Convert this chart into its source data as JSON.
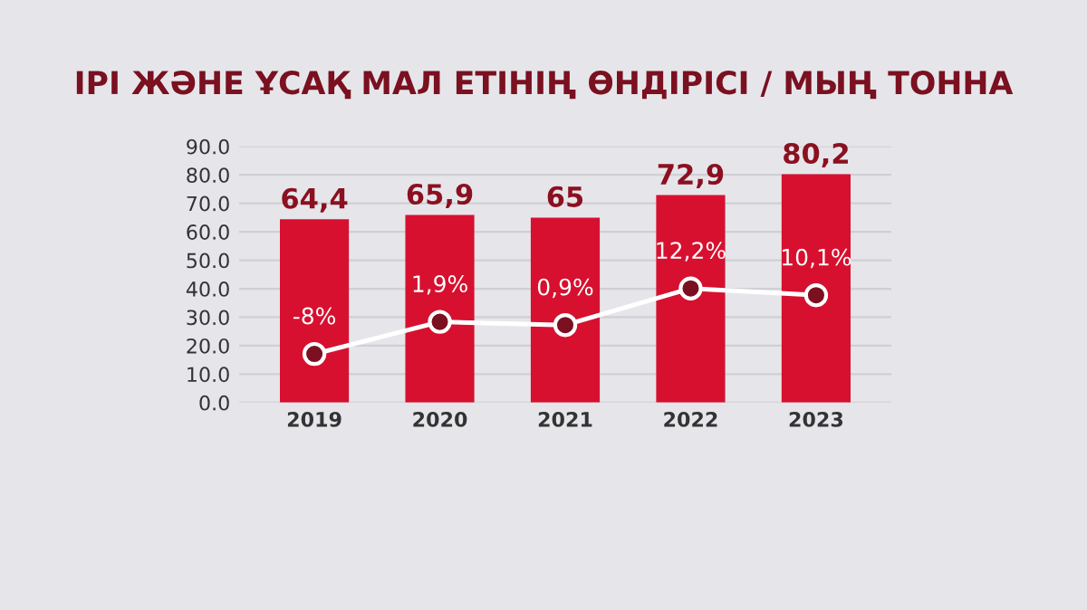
{
  "chart_data": {
    "type": "bar",
    "title": "ІРІ ЖӘНЕ ҰСАҚ МАЛ ЕТІНІҢ ӨНДІРІСІ / МЫҢ ТОННА",
    "categories": [
      "2019",
      "2020",
      "2021",
      "2022",
      "2023"
    ],
    "series": [
      {
        "color": "#d7102f",
        "values": [
          64.4,
          65.9,
          65,
          72.9,
          80.2
        ],
        "value_labels": [
          "64,4",
          "65,9",
          "65",
          "72,9",
          "80,2"
        ]
      },
      {
        "type": "line",
        "axis": "y2",
        "color": "#ffffff",
        "marker": "circle",
        "values": [
          -8,
          1.9,
          0.9,
          12.2,
          10.1
        ],
        "value_labels": [
          "-8%",
          "1,9%",
          "0,9%",
          "12,2%",
          "10,1%"
        ]
      }
    ],
    "ylim": [
      0,
      90
    ],
    "yticks": [
      {
        "value": 0,
        "label": "0.0"
      },
      {
        "value": 10,
        "label": "10.0"
      },
      {
        "value": 20,
        "label": "20.0"
      },
      {
        "value": 30,
        "label": "30.0"
      },
      {
        "value": 40,
        "label": "40.0"
      },
      {
        "value": 50,
        "label": "50.0"
      },
      {
        "value": 60,
        "label": "60.0"
      },
      {
        "value": 70,
        "label": "70.0"
      },
      {
        "value": 80,
        "label": "80.0"
      },
      {
        "value": 90,
        "label": "90.0"
      }
    ],
    "y2lim": [
      -23,
      56
    ],
    "grid": "y"
  }
}
